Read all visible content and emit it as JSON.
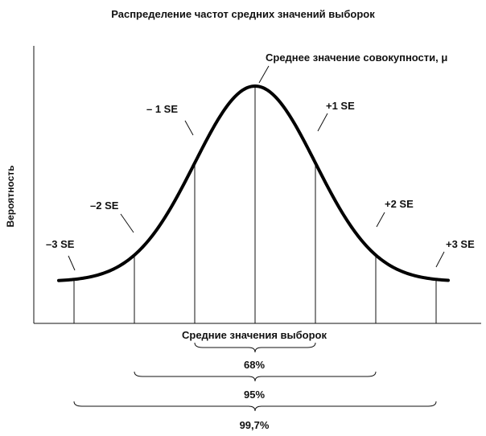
{
  "title": "Распределение частот средних значений выборок",
  "y_axis_label": "Вероятность",
  "x_axis_label": "Средние значения выборок",
  "mean_label": "Среднее значение совокупности, μ",
  "sigma_labels": {
    "m3": "–3 SE",
    "m2": "–2 SE",
    "m1": "– 1 SE",
    "p1": "+1 SE",
    "p2": "+2 SE",
    "p3": "+3 SE"
  },
  "percent_labels": {
    "p68": "68%",
    "p95": "95%",
    "p997": "99,7%"
  },
  "colors": {
    "ink": "#111111",
    "curve": "#000000",
    "background": "#ffffff"
  }
}
